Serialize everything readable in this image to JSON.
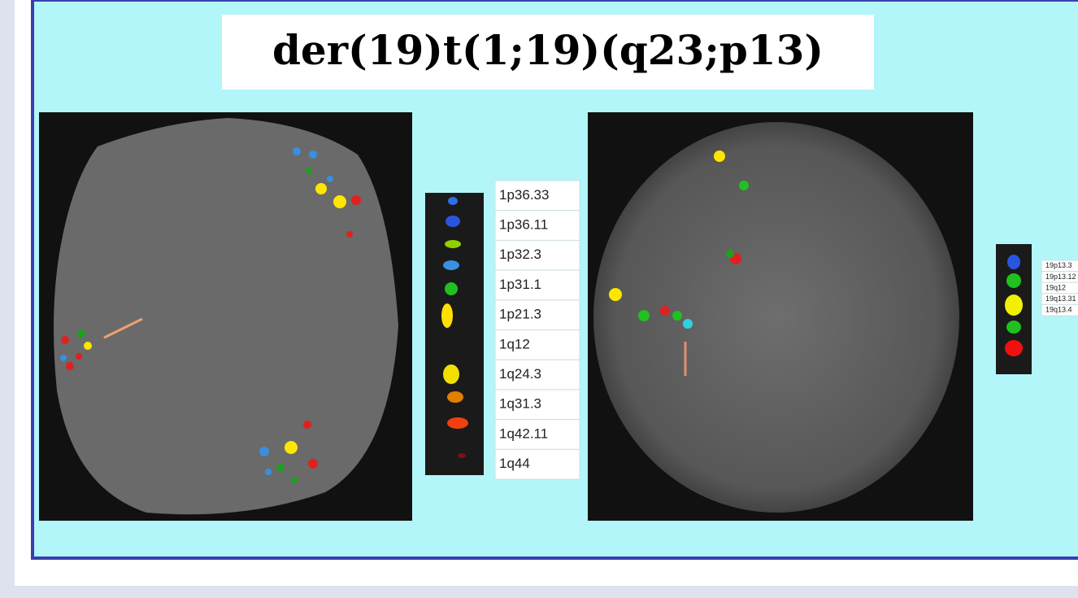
{
  "title": "der(19)t(1;19)(q23;p13)",
  "left_panel": {
    "bands": [
      "1p36.33",
      "1p36.11",
      "1p32.3",
      "1p31.1",
      "1p21.3",
      "1q12",
      "1q24.3",
      "1q31.3",
      "1q42.11",
      "1q44"
    ]
  },
  "right_panel": {
    "bands": [
      "19p13.3",
      "19p13.12",
      "19q12",
      "19q13.31",
      "19q13.4"
    ]
  }
}
